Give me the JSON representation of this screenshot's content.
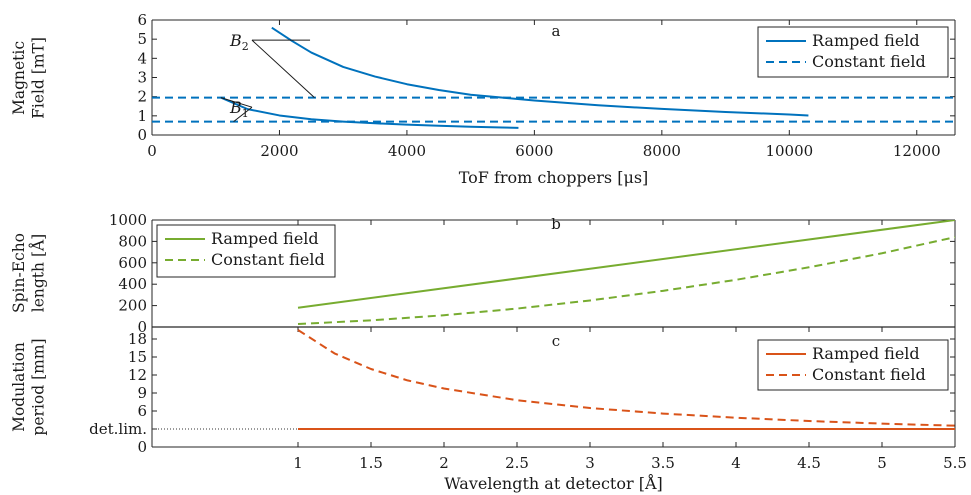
{
  "colors": {
    "blue": "#0072BD",
    "green": "#77AC30",
    "orange": "#D95319",
    "axis": "#262626",
    "detlim": "#333333"
  },
  "chart_data": [
    {
      "type": "line",
      "panel": "a",
      "xlabel": "ToF from choppers [μs]",
      "ylabel": [
        "Magnetic",
        "Field [mT]"
      ],
      "xlim": [
        0,
        12600
      ],
      "ylim": [
        0,
        6
      ],
      "xticks": [
        0,
        2000,
        4000,
        6000,
        8000,
        10000,
        12000
      ],
      "xtick_labels": [
        "0",
        "2000",
        "4000",
        "6000",
        "8000",
        "10000",
        "12000"
      ],
      "yticks": [
        0,
        1,
        2,
        3,
        4,
        5,
        6
      ],
      "ytick_labels": [
        "0",
        "1",
        "2",
        "3",
        "4",
        "5",
        "6"
      ],
      "legend": {
        "location": "top-right",
        "entries": [
          "Ramped field",
          "Constant field"
        ]
      },
      "annotations": [
        {
          "base": "B",
          "sub": "2",
          "label_at": [
            1600,
            4.95
          ],
          "points_to": [
            [
              2480,
              4.95
            ],
            [
              2550,
              1.95
            ]
          ]
        },
        {
          "base": "B",
          "sub": "1",
          "label_at": [
            1600,
            1.45
          ],
          "points_to": [
            [
              1080,
              1.95
            ],
            [
              1280,
              0.7
            ]
          ]
        }
      ],
      "series": [
        {
          "name": "Ramped field",
          "style": "solid",
          "color": "blue",
          "x": [
            1880,
            2200,
            2500,
            3000,
            3500,
            4000,
            4500,
            5000,
            5500,
            6000,
            7000,
            8000,
            9000,
            10000,
            10300
          ],
          "y": [
            5.6,
            4.9,
            4.3,
            3.55,
            3.05,
            2.65,
            2.35,
            2.1,
            1.95,
            1.8,
            1.55,
            1.36,
            1.2,
            1.07,
            1.02
          ]
        },
        {
          "name": "Ramped field B1",
          "style": "solid",
          "color": "blue",
          "x": [
            1080,
            1500,
            2000,
            2500,
            3000,
            3500,
            4000,
            4500,
            5000,
            5500,
            5750
          ],
          "y": [
            1.95,
            1.35,
            1.02,
            0.82,
            0.7,
            0.61,
            0.54,
            0.48,
            0.43,
            0.39,
            0.37
          ]
        },
        {
          "name": "Constant field",
          "style": "dashed",
          "color": "blue",
          "x": [
            0,
            12600
          ],
          "y": [
            1.95,
            1.95
          ]
        },
        {
          "name": "Constant field B1",
          "style": "dashed",
          "color": "blue",
          "x": [
            0,
            12600
          ],
          "y": [
            0.7,
            0.7
          ]
        }
      ]
    },
    {
      "type": "line",
      "panel": "b",
      "xlabel": "",
      "ylabel": [
        "Spin-Echo",
        "length [Å]"
      ],
      "xlim": [
        0,
        5.5
      ],
      "ylim": [
        0,
        1000
      ],
      "yticks": [
        0,
        200,
        400,
        600,
        800,
        1000
      ],
      "ytick_labels": [
        "0",
        "200",
        "400",
        "600",
        "800",
        "1000"
      ],
      "legend": {
        "location": "top-left",
        "entries": [
          "Ramped field",
          "Constant field"
        ]
      },
      "series": [
        {
          "name": "Ramped field",
          "style": "solid",
          "color": "green",
          "x": [
            1,
            5.5
          ],
          "y": [
            180,
            1000
          ]
        },
        {
          "name": "Constant field",
          "style": "dashed",
          "color": "green",
          "x": [
            1,
            1.5,
            2,
            2.5,
            3,
            3.5,
            4,
            4.5,
            5,
            5.5
          ],
          "y": [
            28,
            62,
            110,
            172,
            248,
            338,
            441,
            558,
            689,
            840
          ]
        }
      ]
    },
    {
      "type": "line",
      "panel": "c",
      "xlabel": "Wavelength at detector [Å]",
      "ylabel": [
        "Modulation",
        "period [mm]"
      ],
      "xlim": [
        0,
        5.5
      ],
      "ylim": [
        0,
        20
      ],
      "xticks": [
        1,
        1.5,
        2,
        2.5,
        3,
        3.5,
        4,
        4.5,
        5,
        5.5
      ],
      "xtick_labels": [
        "1",
        "1.5",
        "2",
        "2.5",
        "3",
        "3.5",
        "4",
        "4.5",
        "5",
        "5.5"
      ],
      "yticks": [
        0,
        3,
        6,
        9,
        12,
        15,
        18
      ],
      "ytick_labels": [
        "0",
        "",
        "6",
        "9",
        "12",
        "15",
        "18"
      ],
      "det_lim": {
        "label": "det.lim.",
        "value": 3
      },
      "legend": {
        "location": "top-right",
        "entries": [
          "Ramped field",
          "Constant field"
        ]
      },
      "series": [
        {
          "name": "Ramped field",
          "style": "solid",
          "color": "orange",
          "x": [
            1,
            5.5
          ],
          "y": [
            3,
            3
          ]
        },
        {
          "name": "Constant field",
          "style": "dashed",
          "color": "orange",
          "x": [
            1,
            1.25,
            1.5,
            1.75,
            2,
            2.5,
            3,
            3.5,
            4,
            4.5,
            5,
            5.5
          ],
          "y": [
            19.5,
            15.6,
            13.0,
            11.1,
            9.75,
            7.8,
            6.5,
            5.57,
            4.88,
            4.33,
            3.9,
            3.55
          ]
        }
      ]
    }
  ]
}
